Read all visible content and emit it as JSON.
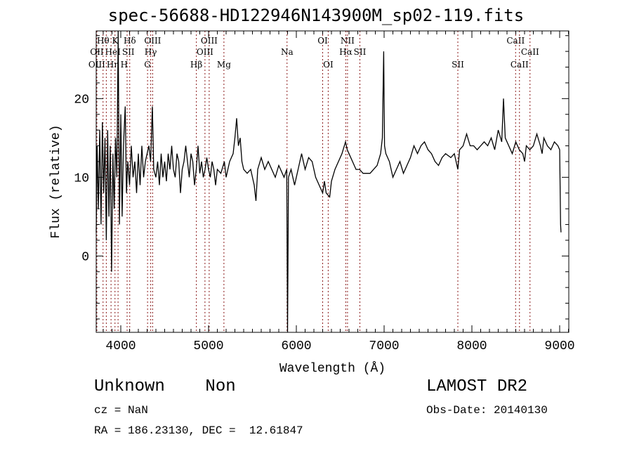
{
  "chart_data": {
    "type": "line",
    "title": "spec-56688-HD122946N143900M_sp02-119.fits",
    "xlabel": "Wavelength (Å)",
    "ylabel": "Flux (relative)",
    "xlim": [
      3720,
      9104
    ],
    "ylim": [
      -9.7,
      28.6
    ],
    "xticks": [
      4000,
      5000,
      6000,
      7000,
      8000,
      9000
    ],
    "yticks": [
      0,
      10,
      20
    ],
    "grid": false,
    "line_color": "#000000",
    "marker_color": "#8b1a1a",
    "spectral_lines": [
      {
        "label": "Hθ",
        "wl": 3798,
        "row": 0
      },
      {
        "label": "K",
        "wl": 3934,
        "row": 0
      },
      {
        "label": "Hδ",
        "wl": 4102,
        "row": 0
      },
      {
        "label": "OIII",
        "wl": 4363,
        "row": 0
      },
      {
        "label": "OIII",
        "wl": 5007,
        "row": 0
      },
      {
        "label": "OII",
        "wl": 3727,
        "row": 1
      },
      {
        "label": "HeI",
        "wl": 3889,
        "row": 1
      },
      {
        "label": "SII",
        "wl": 4072,
        "row": 1
      },
      {
        "label": "Hγ",
        "wl": 4341,
        "row": 1
      },
      {
        "label": "OIII",
        "wl": 4959,
        "row": 1
      },
      {
        "label": "OIII",
        "wl": 3727,
        "row": 2
      },
      {
        "label": "Hη",
        "wl": 3835,
        "row": 2
      },
      {
        "label": "H",
        "wl": 3969,
        "row": 2
      },
      {
        "label": "G",
        "wl": 4305,
        "row": 2
      },
      {
        "label": "Hβ",
        "wl": 4861,
        "row": 2
      },
      {
        "label": "Mg",
        "wl": 5175,
        "row": 2
      },
      {
        "label": "Na",
        "wl": 5894,
        "row": 1
      },
      {
        "label": "OI",
        "wl": 6300,
        "row": 0
      },
      {
        "label": "OI",
        "wl": 6363,
        "row": 2
      },
      {
        "label": "NII",
        "wl": 6583,
        "row": 0
      },
      {
        "label": "Hα",
        "wl": 6563,
        "row": 1
      },
      {
        "label": "SII",
        "wl": 6724,
        "row": 1
      },
      {
        "label": "SII",
        "wl": 7840,
        "row": 2
      },
      {
        "label": "CaII",
        "wl": 8498,
        "row": 0
      },
      {
        "label": "CaII",
        "wl": 8662,
        "row": 1
      },
      {
        "label": "CaII",
        "wl": 8542,
        "row": 2
      }
    ],
    "x": [
      3720,
      3730,
      3745,
      3760,
      3775,
      3790,
      3805,
      3820,
      3835,
      3850,
      3865,
      3880,
      3895,
      3910,
      3925,
      3940,
      3955,
      3970,
      3985,
      4000,
      4015,
      4030,
      4050,
      4065,
      4080,
      4100,
      4120,
      4140,
      4160,
      4180,
      4200,
      4220,
      4240,
      4260,
      4280,
      4300,
      4320,
      4340,
      4360,
      4375,
      4400,
      4420,
      4440,
      4460,
      4480,
      4500,
      4520,
      4540,
      4560,
      4580,
      4600,
      4620,
      4640,
      4660,
      4680,
      4700,
      4720,
      4740,
      4760,
      4780,
      4800,
      4820,
      4840,
      4860,
      4880,
      4900,
      4920,
      4940,
      4960,
      4980,
      5000,
      5020,
      5040,
      5060,
      5080,
      5100,
      5140,
      5180,
      5200,
      5240,
      5280,
      5300,
      5320,
      5340,
      5360,
      5380,
      5400,
      5440,
      5480,
      5520,
      5540,
      5560,
      5600,
      5640,
      5680,
      5720,
      5760,
      5800,
      5860,
      5890,
      5900,
      5910,
      5940,
      5980,
      6020,
      6060,
      6100,
      6140,
      6180,
      6220,
      6260,
      6300,
      6320,
      6340,
      6380,
      6400,
      6440,
      6480,
      6520,
      6560,
      6580,
      6600,
      6640,
      6680,
      6720,
      6760,
      6800,
      6840,
      6880,
      6920,
      6960,
      6980,
      6995,
      7005,
      7020,
      7060,
      7100,
      7140,
      7180,
      7220,
      7260,
      7300,
      7340,
      7380,
      7420,
      7460,
      7500,
      7540,
      7580,
      7620,
      7660,
      7700,
      7760,
      7800,
      7840,
      7860,
      7900,
      7940,
      7980,
      8020,
      8060,
      8100,
      8140,
      8180,
      8220,
      8260,
      8300,
      8340,
      8360,
      8380,
      8420,
      8460,
      8500,
      8540,
      8580,
      8600,
      8620,
      8660,
      8700,
      8740,
      8780,
      8800,
      8820,
      8860,
      8900,
      8940,
      8980,
      9000,
      9010,
      9015
    ],
    "y": [
      3,
      14,
      6,
      16,
      4,
      17,
      8,
      15,
      2,
      16,
      5,
      14,
      -2,
      13,
      6,
      15,
      10,
      30,
      4,
      18,
      5,
      14,
      19,
      8,
      12,
      9,
      14,
      10,
      12,
      8,
      13,
      9,
      14,
      10,
      12,
      13,
      14,
      12,
      19,
      11,
      10,
      12,
      9,
      13,
      10,
      12,
      9.5,
      13,
      11,
      14,
      11,
      10,
      13,
      12,
      8,
      11,
      12,
      14,
      12,
      10,
      13,
      12,
      9,
      11,
      14,
      10.5,
      12,
      10,
      11,
      12.5,
      11,
      10,
      12,
      11,
      9,
      11,
      10.5,
      12,
      10,
      12,
      13,
      15,
      17.5,
      14,
      15,
      12,
      11,
      10.5,
      11,
      9,
      7,
      11,
      12.5,
      11,
      12,
      11,
      10,
      11.5,
      10,
      11,
      -10,
      10,
      11,
      9,
      11,
      13,
      11,
      12.5,
      12,
      10,
      9,
      8,
      9.5,
      8,
      7.5,
      9.5,
      11,
      12,
      13,
      14.5,
      13.5,
      13,
      12,
      11,
      11,
      10.5,
      10.5,
      10.5,
      11,
      11.5,
      13,
      15,
      26,
      14,
      13,
      12,
      10,
      11,
      12,
      10.5,
      11.5,
      12.5,
      14,
      13,
      14,
      14.5,
      13.5,
      13,
      12,
      11.5,
      12.5,
      13,
      12.5,
      13,
      11,
      13.5,
      14,
      15.5,
      14,
      14,
      13.5,
      14,
      14.5,
      14,
      15,
      13.5,
      16,
      14.5,
      20,
      15,
      14,
      13,
      14.5,
      13.5,
      13,
      12,
      14,
      13.5,
      14,
      15.5,
      14,
      13,
      15,
      14,
      13.5,
      14.5,
      14,
      13.5,
      4,
      3
    ]
  },
  "footer": {
    "object": "Unknown    Non",
    "survey": "LAMOST DR2",
    "cz": "cz = NaN",
    "obs_date": "Obs-Date: 20140130",
    "coords": "RA = 186.23130, DEC =  12.61847"
  }
}
